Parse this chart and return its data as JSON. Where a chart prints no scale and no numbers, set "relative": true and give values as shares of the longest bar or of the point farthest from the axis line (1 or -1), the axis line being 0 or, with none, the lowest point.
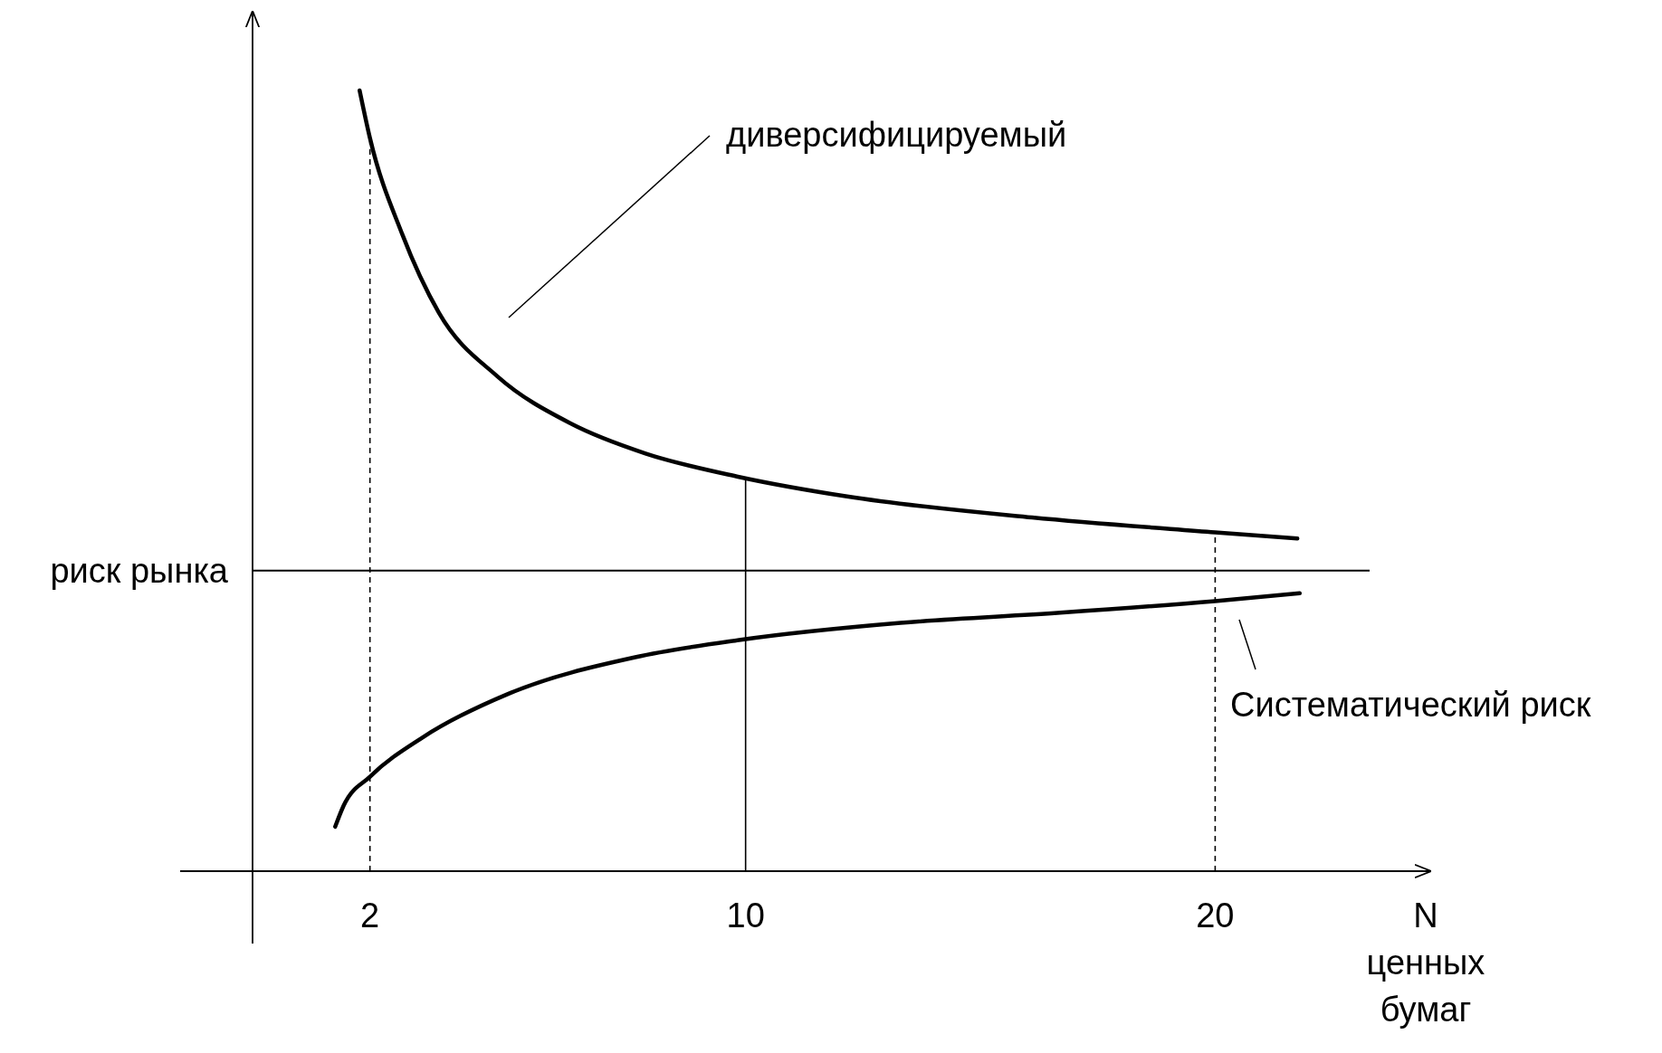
{
  "chart_data": {
    "type": "line",
    "relative": true,
    "xlabel": "N\nценных\nбумаг",
    "xlim": [
      -0.5,
      24.6
    ],
    "xticks": [
      2,
      10,
      20
    ],
    "grid": false,
    "marker": "none",
    "line_style": "solid",
    "series": [
      {
        "color": "#000000",
        "x": [
          1.78,
          2.0,
          2.68,
          3.47,
          4.71,
          6.29,
          7.87,
          9.86,
          12.16,
          16.1,
          20.0,
          21.75
        ],
        "values": [
          1.0,
          0.939,
          0.817,
          0.715,
          0.634,
          0.573,
          0.535,
          0.505,
          0.48,
          0.453,
          0.434,
          0.426
        ]
      },
      {
        "color": "#000000",
        "x": [
          1.26,
          1.44,
          2.0,
          3.14,
          4.94,
          7.65,
          9.86,
          13.3,
          16.7,
          20.0,
          21.8
        ],
        "values": [
          0.057,
          0.084,
          0.121,
          0.172,
          0.227,
          0.274,
          0.296,
          0.318,
          0.331,
          0.346,
          0.356
        ]
      }
    ],
    "ref_lines": [
      {
        "axis": "y",
        "value": 0.385,
        "label": "риск рынка",
        "color": "#000000",
        "line_style": "solid"
      },
      {
        "axis": "x",
        "value": 2,
        "color": "#000000",
        "line_style": "dashed"
      },
      {
        "axis": "x",
        "value": 10,
        "color": "#000000",
        "line_style": "solid"
      },
      {
        "axis": "x",
        "value": 20,
        "color": "#000000",
        "line_style": "dashed"
      }
    ],
    "annotations": [
      "диверсифицируемый",
      "Систематический риск"
    ]
  }
}
